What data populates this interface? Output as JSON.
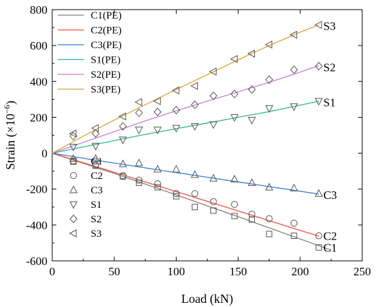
{
  "chart_data": {
    "type": "scatter",
    "xlabel": "Load (kN)",
    "ylabel": "Strain (×10",
    "ylabel_exponent": "−6",
    "ylabel_close": ")",
    "xlim": [
      0,
      250
    ],
    "ylim": [
      -600,
      800
    ],
    "x_ticks": [
      0,
      50,
      100,
      150,
      200,
      250
    ],
    "y_ticks": [
      -600,
      -400,
      -200,
      0,
      200,
      400,
      600,
      800
    ],
    "x_tick_labels": [
      "0",
      "50",
      "100",
      "150",
      "200",
      "250"
    ],
    "y_tick_labels": [
      "-600",
      "-400",
      "-200",
      "0",
      "200",
      "400",
      "600",
      "800"
    ],
    "grid": false,
    "legend_placement": "top-left",
    "lines": [
      {
        "name": "C1(PE)",
        "color": "#808080",
        "x": [
          0,
          25,
          50,
          75,
          100,
          125,
          150,
          175,
          200,
          225
        ],
        "y": [
          0,
          -56,
          -113,
          -172,
          -232,
          -293,
          -354,
          -416,
          -478,
          -540
        ]
      },
      {
        "name": "C2(PE)",
        "color": "#f05040",
        "x": [
          0,
          25,
          50,
          75,
          100,
          125,
          150,
          175,
          200,
          215
        ],
        "y": [
          0,
          -53,
          -106,
          -160,
          -214,
          -268,
          -322,
          -376,
          -430,
          -462
        ]
      },
      {
        "name": "C3(PE)",
        "color": "#3a7cd0",
        "x": [
          0,
          25,
          50,
          75,
          100,
          125,
          150,
          175,
          200,
          215
        ],
        "y": [
          0,
          -28,
          -55,
          -82,
          -108,
          -134,
          -160,
          -186,
          -212,
          -228
        ]
      },
      {
        "name": "S1(PE)",
        "color": "#2cb896",
        "x": [
          0,
          25,
          50,
          75,
          100,
          125,
          150,
          175,
          200,
          215
        ],
        "y": [
          0,
          35,
          70,
          105,
          137,
          168,
          200,
          232,
          268,
          290
        ]
      },
      {
        "name": "S2(PE)",
        "color": "#c87cd8",
        "x": [
          0,
          25,
          50,
          75,
          100,
          125,
          150,
          175,
          200,
          215
        ],
        "y": [
          0,
          60,
          120,
          180,
          236,
          290,
          342,
          395,
          452,
          488
        ]
      },
      {
        "name": "S3(PE)",
        "color": "#e0a030",
        "x": [
          0,
          25,
          50,
          75,
          100,
          125,
          150,
          175,
          200,
          215
        ],
        "y": [
          0,
          95,
          185,
          270,
          355,
          437,
          520,
          600,
          675,
          715
        ]
      }
    ],
    "markers": [
      {
        "name": "C1",
        "marker": "square",
        "x": [
          17,
          35,
          57,
          70,
          85,
          100,
          115,
          130,
          147,
          161,
          175,
          195,
          215
        ],
        "y": [
          -47,
          -70,
          -130,
          -165,
          -190,
          -240,
          -300,
          -320,
          -350,
          -370,
          -450,
          -460,
          -525
        ]
      },
      {
        "name": "C2",
        "marker": "circle",
        "x": [
          17,
          35,
          57,
          70,
          85,
          100,
          115,
          130,
          147,
          161,
          175,
          195,
          215
        ],
        "y": [
          -45,
          -65,
          -125,
          -150,
          -170,
          -225,
          -225,
          -270,
          -285,
          -340,
          -365,
          -390,
          -460
        ]
      },
      {
        "name": "C3",
        "marker": "triangle-up",
        "x": [
          17,
          35,
          57,
          70,
          85,
          100,
          115,
          130,
          147,
          161,
          175,
          195,
          215
        ],
        "y": [
          -30,
          -30,
          -60,
          -55,
          -90,
          -90,
          -120,
          -140,
          -145,
          -165,
          -190,
          -195,
          -225
        ]
      },
      {
        "name": "S1",
        "marker": "triangle-down",
        "x": [
          17,
          35,
          57,
          70,
          85,
          100,
          115,
          130,
          147,
          161,
          175,
          195,
          215
        ],
        "y": [
          35,
          40,
          75,
          130,
          130,
          140,
          150,
          160,
          200,
          185,
          250,
          260,
          290
        ]
      },
      {
        "name": "S2",
        "marker": "diamond",
        "x": [
          17,
          35,
          57,
          70,
          85,
          100,
          115,
          130,
          147,
          161,
          175,
          195,
          215
        ],
        "y": [
          95,
          110,
          150,
          225,
          230,
          240,
          270,
          320,
          330,
          355,
          410,
          465,
          485
        ]
      },
      {
        "name": "S3",
        "marker": "triangle-left",
        "x": [
          17,
          35,
          57,
          70,
          85,
          100,
          115,
          130,
          147,
          161,
          175,
          195,
          215
        ],
        "y": [
          110,
          140,
          205,
          285,
          290,
          350,
          375,
          455,
          525,
          555,
          605,
          660,
          715
        ]
      }
    ],
    "annotations": [
      {
        "text": "S3",
        "x": 217,
        "y": 710
      },
      {
        "text": "S2",
        "x": 217,
        "y": 480
      },
      {
        "text": "S1",
        "x": 217,
        "y": 285
      },
      {
        "text": "C3",
        "x": 217,
        "y": -232
      },
      {
        "text": "C2",
        "x": 217,
        "y": -460
      },
      {
        "text": "C1",
        "x": 217,
        "y": -525
      }
    ]
  }
}
